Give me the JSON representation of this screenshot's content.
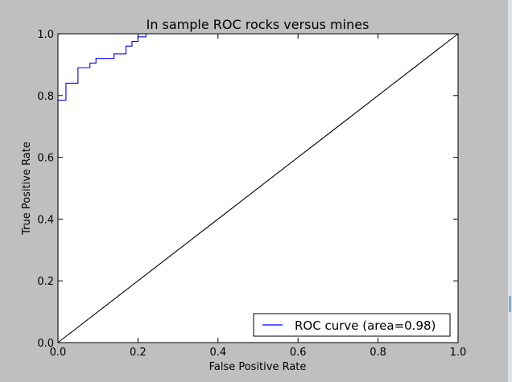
{
  "chart_data": {
    "type": "line",
    "title": "In sample ROC rocks versus mines",
    "xlabel": "False Positive Rate",
    "ylabel": "True Positive Rate",
    "xlim": [
      0.0,
      1.0
    ],
    "ylim": [
      0.0,
      1.0
    ],
    "xticks": [
      "0.0",
      "0.2",
      "0.4",
      "0.6",
      "0.8",
      "1.0"
    ],
    "yticks": [
      "0.0",
      "0.2",
      "0.4",
      "0.6",
      "0.8",
      "1.0"
    ],
    "grid": false,
    "legend_position": "lower-right",
    "series": [
      {
        "name": "ROC curve (area=0.98)",
        "color": "#0000ff",
        "x": [
          0.0,
          0.0,
          0.02,
          0.02,
          0.05,
          0.05,
          0.08,
          0.08,
          0.095,
          0.095,
          0.14,
          0.14,
          0.17,
          0.17,
          0.185,
          0.185,
          0.2,
          0.2,
          0.22,
          0.22
        ],
        "y": [
          0.0,
          0.785,
          0.785,
          0.84,
          0.84,
          0.89,
          0.89,
          0.905,
          0.905,
          0.92,
          0.92,
          0.935,
          0.935,
          0.96,
          0.96,
          0.975,
          0.975,
          0.99,
          0.99,
          1.0
        ]
      },
      {
        "color": "#000000",
        "x": [
          0.0,
          1.0
        ],
        "y": [
          0.0,
          1.0
        ]
      }
    ]
  }
}
